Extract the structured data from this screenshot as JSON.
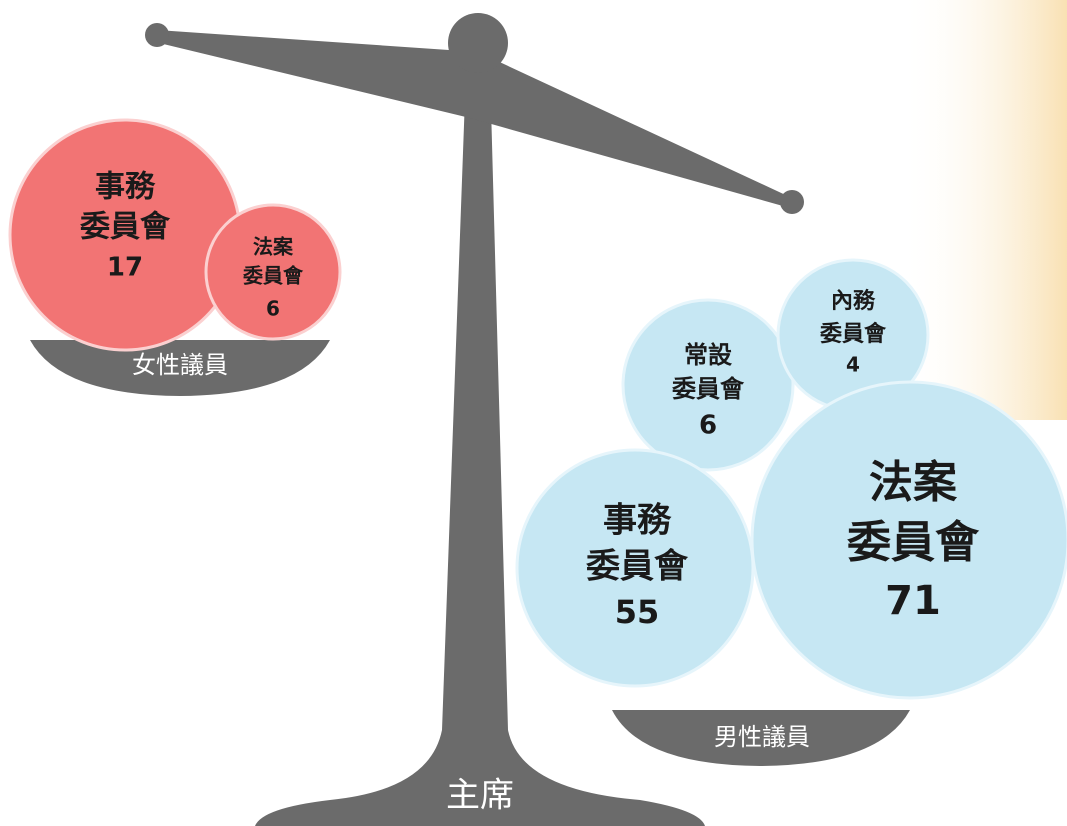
{
  "chair": "主席",
  "groups": [
    {
      "label": "女性議員",
      "committees": [
        {
          "name": [
            "事務",
            "委員會"
          ],
          "count": 17
        },
        {
          "name": [
            "法案",
            "委員會"
          ],
          "count": 6
        }
      ]
    },
    {
      "label": "男性議員",
      "committees": [
        {
          "name": [
            "常設",
            "委員會"
          ],
          "count": 6
        },
        {
          "name": [
            "內務",
            "委員會"
          ],
          "count": 4
        },
        {
          "name": [
            "事務",
            "委員會"
          ],
          "count": 55
        },
        {
          "name": [
            "法案",
            "委員會"
          ],
          "count": 71
        }
      ]
    }
  ]
}
